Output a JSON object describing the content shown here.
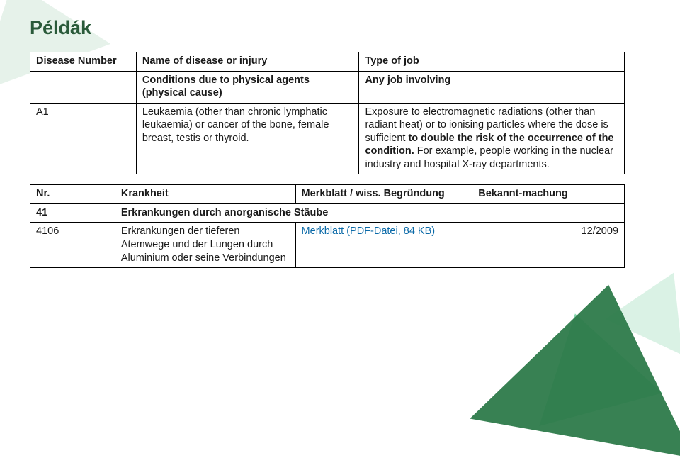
{
  "title": "Példák",
  "table1": {
    "headers": {
      "c1": "Disease Number",
      "c2": "Name of disease or injury",
      "c3": "Type of job"
    },
    "row_cond": {
      "c2": "Conditions due to physical agents (physical cause)",
      "c3": "Any job involving"
    },
    "row_a1": {
      "c1": "A1",
      "c2": "Leukaemia (other than chronic lymphatic leukaemia) or cancer of the bone, female breast, testis or thyroid.",
      "c3_pre": "Exposure to electromagnetic radiations (other than radiant heat) or to ionising particles where the dose is sufficient ",
      "c3_bold": "to double the risk of the occurrence of the condition.",
      "c3_post": " For example, people working in the nuclear industry and hospital X-ray departments."
    }
  },
  "table2": {
    "headers": {
      "c1": "Nr.",
      "c2": "Krankheit",
      "c3": "Merkblatt / wiss. Begründung",
      "c4": "Bekannt-machung"
    },
    "row_41": {
      "c1": "41",
      "span": "Erkrankungen durch anorganische Stäube"
    },
    "row_4106": {
      "c1": "4106",
      "c2": "Erkrankungen der tieferen Atemwege und der Lungen durch Aluminium oder seine Verbindungen",
      "c3_link": "Merkblatt (PDF-Datei, 84 KB)",
      "c4": "12/2009"
    }
  }
}
